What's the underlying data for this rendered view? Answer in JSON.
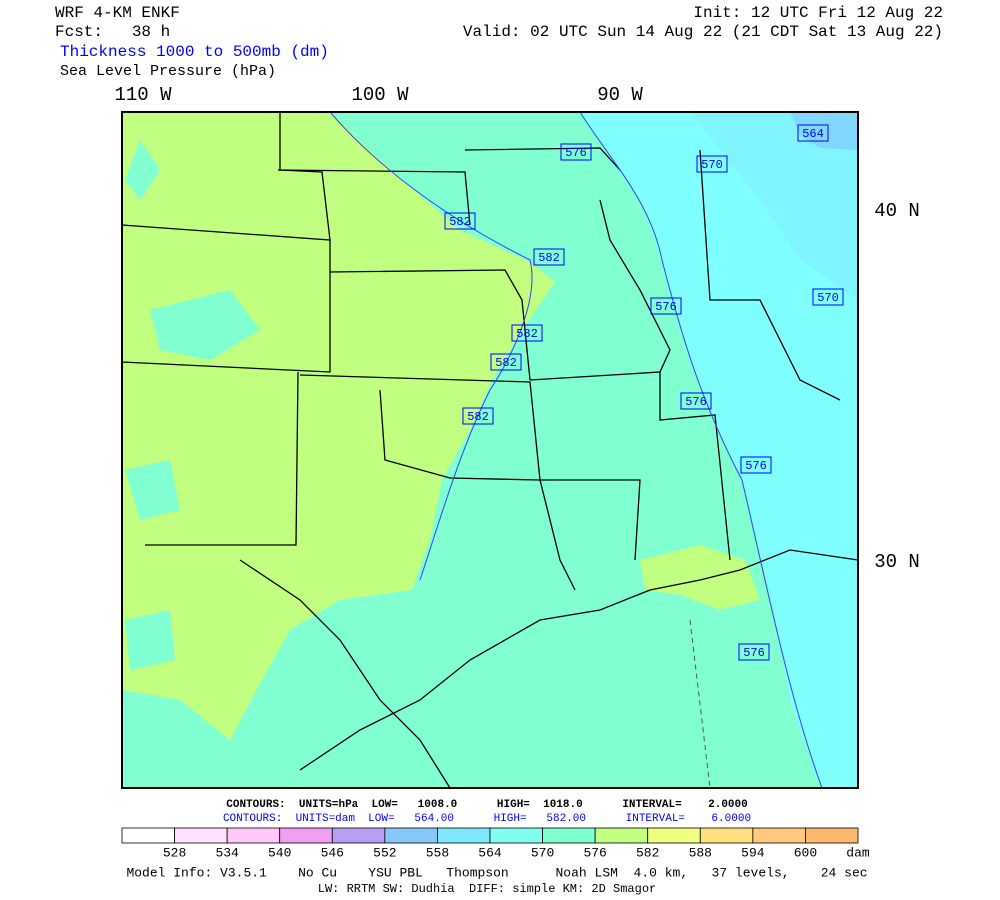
{
  "header": {
    "model": "WRF 4-KM ENKF",
    "fcst": "Fcst:   38 h",
    "init": "Init: 12 UTC Fri 12 Aug 22",
    "valid": "Valid: 02 UTC Sun 14 Aug 22 (21 CDT Sat 13 Aug 22)",
    "field1": "Thickness 1000 to 500mb (dm)",
    "field2": "Sea Level Pressure (hPa)"
  },
  "map": {
    "lon_labels": [
      "110 W",
      "100 W",
      "90 W"
    ],
    "lat_labels": [
      "40 N",
      "30 N"
    ],
    "contour_labels": [
      "576",
      "570",
      "564",
      "582",
      "582",
      "576",
      "570",
      "582",
      "582",
      "576",
      "582",
      "576",
      "576"
    ]
  },
  "contours": {
    "pressure": "CONTOURS:  UNITS=hPa  LOW=   1008.0      HIGH=  1018.0      INTERVAL=    2.0000",
    "thickness": "CONTOURS:  UNITS=dam  LOW=   564.00      HIGH=   582.00      INTERVAL=    6.0000"
  },
  "colorbar": {
    "labels": [
      "528",
      "534",
      "540",
      "546",
      "552",
      "558",
      "564",
      "570",
      "576",
      "582",
      "588",
      "594",
      "600"
    ],
    "unit": "dam"
  },
  "footer": {
    "line1": "Model Info: V3.5.1    No Cu    YSU PBL   Thompson      Noah LSM  4.0 km,   37 levels,    24 sec",
    "line2": "LW: RRTM SW: Dudhia  DIFF: simple KM: 2D Smagor"
  }
}
